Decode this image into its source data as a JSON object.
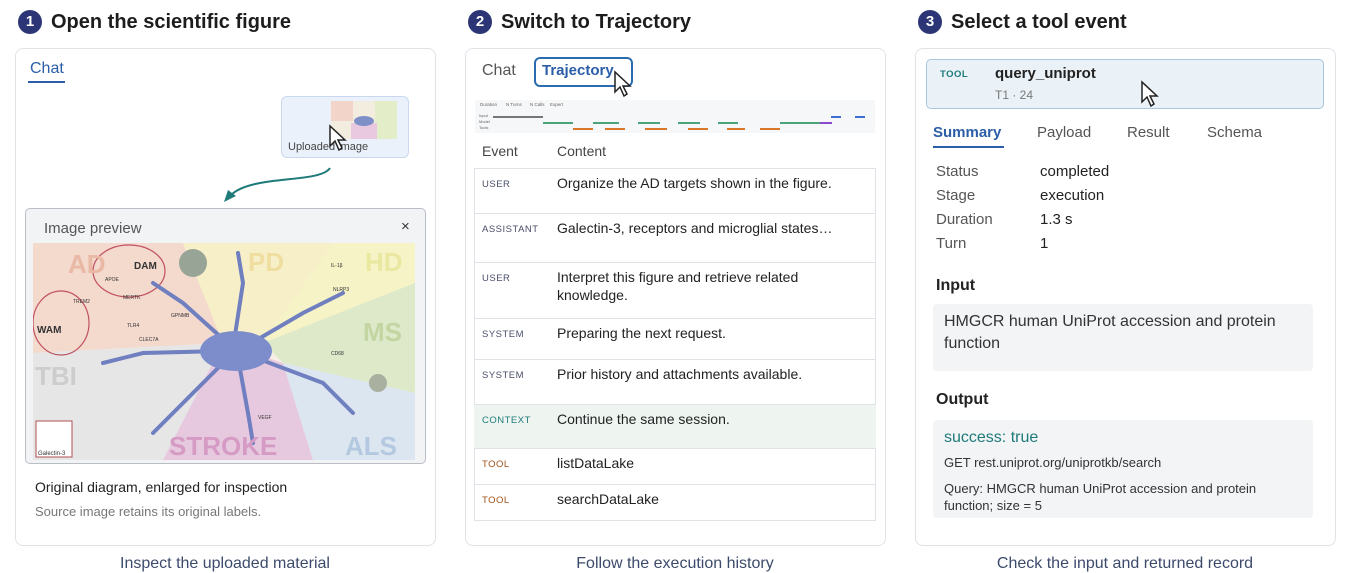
{
  "steps": [
    {
      "number": "1",
      "title": "Open the scientific figure",
      "caption": "Inspect the uploaded material"
    },
    {
      "number": "2",
      "title": "Switch to Trajectory",
      "caption": "Follow the execution history"
    },
    {
      "number": "3",
      "title": "Select a tool event",
      "caption": "Check the input and returned record"
    }
  ],
  "chat_panel": {
    "tab": "Chat",
    "thumbnail_label": "Uploaded image",
    "preview_title": "Image preview",
    "close": "×",
    "diagram": {
      "regions": [
        "AD",
        "PD",
        "HD",
        "MS",
        "TBI",
        "STROKE",
        "ALS"
      ],
      "labels": [
        "DAM",
        "WAM",
        "TREM2",
        "APOE",
        "MERTK",
        "TLR4",
        "CLEC7A",
        "GPNMB",
        "IL-1β",
        "NLRP3",
        "CD68",
        "VEGF"
      ],
      "legend": "Galectin-3"
    },
    "description": "Original diagram, enlarged for inspection",
    "note": "Source image retains its original labels."
  },
  "trajectory_panel": {
    "tabs": [
      "Chat",
      "Trajectory"
    ],
    "timeline_headers": [
      "Duration",
      "N Turns",
      "N Calls",
      "Expert"
    ],
    "timeline_rows": [
      "Input",
      "Model",
      "Tools"
    ],
    "columns": [
      "Event",
      "Content"
    ],
    "rows": [
      [
        "USER",
        "Organize the AD targets shown in the figure."
      ],
      [
        "ASSISTANT",
        "Galectin-3, receptors and microglial states…"
      ],
      [
        "USER",
        "Interpret this figure and retrieve related knowledge."
      ],
      [
        "SYSTEM",
        "Preparing the next request."
      ],
      [
        "SYSTEM",
        "Prior history and attachments available."
      ],
      [
        "CONTEXT",
        "Continue the same session."
      ],
      [
        "TOOL",
        "listDataLake"
      ],
      [
        "TOOL",
        "searchDataLake"
      ]
    ]
  },
  "detail_panel": {
    "card": {
      "tag": "TOOL",
      "name": "query_uniprot",
      "meta": "T1 · 24"
    },
    "tabs": [
      "Summary",
      "Payload",
      "Result",
      "Schema"
    ],
    "fields": [
      [
        "Status",
        "completed"
      ],
      [
        "Stage",
        "execution"
      ],
      [
        "Duration",
        "1.3 s"
      ],
      [
        "Turn",
        "1"
      ]
    ],
    "input_heading": "Input",
    "input": "HMGCR human UniProt accession and protein function",
    "output_heading": "Output",
    "output_status": "success: true",
    "output_request": "GET rest.uniprot.org/uniprotkb/search",
    "output_query": "Query: HMGCR human UniProt accession and protein function; size = 5"
  }
}
